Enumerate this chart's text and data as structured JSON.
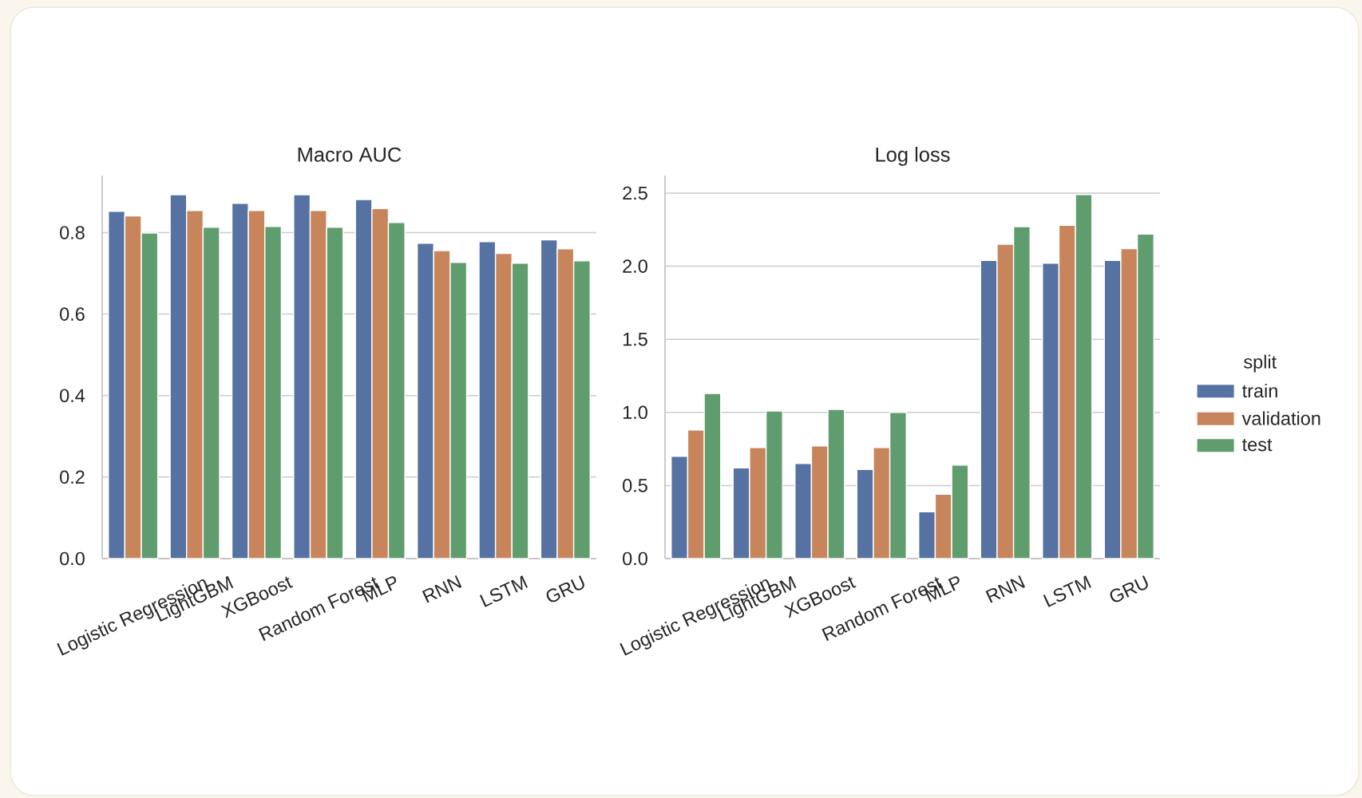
{
  "chart_data": [
    {
      "type": "bar",
      "title": "Macro AUC",
      "categories": [
        "Logistic Regression",
        "LightGBM",
        "XGBoost",
        "Random Forest",
        "MLP",
        "RNN",
        "LSTM",
        "GRU"
      ],
      "series": [
        {
          "color": "#5572a2",
          "values": [
            0.852,
            0.893,
            0.872,
            0.893,
            0.881,
            0.774,
            0.778,
            0.782
          ]
        },
        {
          "color": "#c8855c",
          "values": [
            0.841,
            0.854,
            0.854,
            0.854,
            0.859,
            0.756,
            0.749,
            0.76
          ]
        },
        {
          "color": "#609d6e",
          "values": [
            0.799,
            0.813,
            0.815,
            0.813,
            0.825,
            0.727,
            0.725,
            0.731
          ]
        }
      ],
      "ylim": [
        0,
        0.94
      ],
      "yticks": [
        {
          "value": 0,
          "label": "0.0"
        },
        0.2,
        0.4,
        0.6,
        0.8
      ],
      "grid": "y"
    },
    {
      "type": "bar",
      "title": "Log loss",
      "categories": [
        "Logistic Regression",
        "LightGBM",
        "XGBoost",
        "Random Forest",
        "MLP",
        "RNN",
        "LSTM",
        "GRU"
      ],
      "series": [
        {
          "name": "train",
          "color": "#5572a2",
          "values": [
            0.7,
            0.62,
            0.65,
            0.61,
            0.32,
            2.04,
            2.02,
            2.04
          ]
        },
        {
          "name": "validation",
          "color": "#c8855c",
          "values": [
            0.88,
            0.76,
            0.77,
            0.76,
            0.44,
            2.15,
            2.28,
            2.12
          ]
        },
        {
          "name": "test",
          "color": "#609d6e",
          "values": [
            1.13,
            1.01,
            1.02,
            1.0,
            0.64,
            2.27,
            2.49,
            2.22
          ]
        }
      ],
      "ylim": [
        0,
        2.62
      ],
      "yticks": [
        {
          "value": 0,
          "label": "0.0"
        },
        0.5,
        {
          "value": 1,
          "label": "1.0"
        },
        1.5,
        {
          "value": 2,
          "label": "2.0"
        },
        2.5
      ],
      "grid": "y",
      "legend": "right",
      "legend_title": "split"
    }
  ]
}
